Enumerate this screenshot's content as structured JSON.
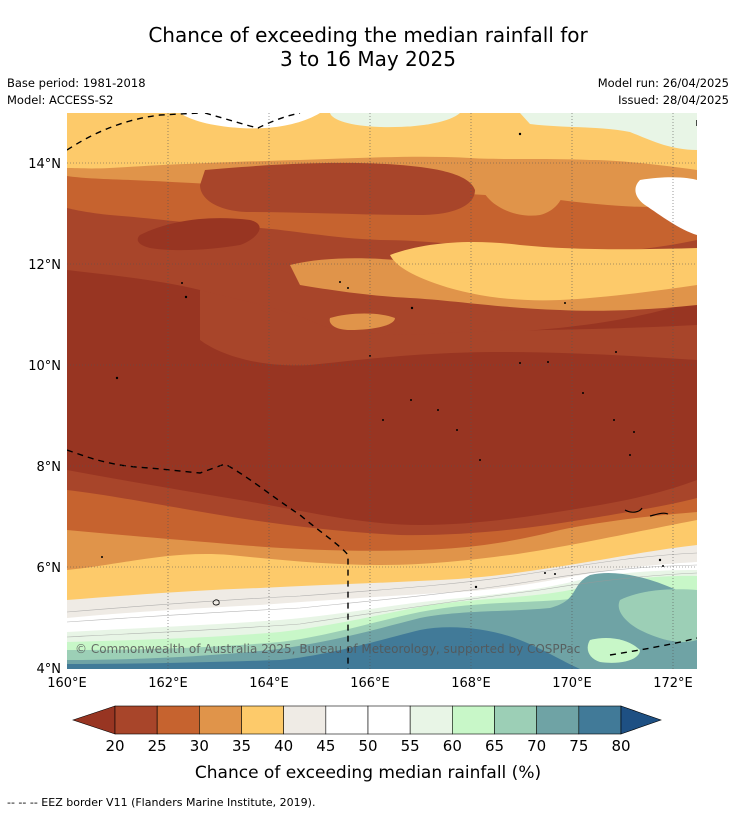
{
  "title_line1": "Chance of exceeding the median rainfall for",
  "title_line2": "3 to 16 May 2025",
  "base_period": "Base period: 1981-2018",
  "model": "Model: ACCESS-S2",
  "model_run": "Model run: 26/04/2025",
  "issued": "Issued: 28/04/2025",
  "copyright": "© Commonwealth of Australia 2025, Bureau of Meteorology, supported by COSPPac",
  "x_ticks": [
    "160°E",
    "162°E",
    "164°E",
    "166°E",
    "168°E",
    "170°E",
    "172°E"
  ],
  "y_ticks": [
    "14°N",
    "12°N",
    "10°N",
    "8°N",
    "6°N",
    "4°N"
  ],
  "colorbar": {
    "title": "Chance of exceeding median rainfall (%)",
    "ticks": [
      "20",
      "25",
      "30",
      "35",
      "40",
      "45",
      "50",
      "55",
      "60",
      "65",
      "70",
      "75",
      "80"
    ],
    "colors": [
      "#a8452a",
      "#c6632f",
      "#e0944a",
      "#fdca6a",
      "#efebe5",
      "#ffffff",
      "#ffffff",
      "#e8f5e6",
      "#c8f7c8",
      "#9ccfb6",
      "#6fa3a5",
      "#417a98"
    ],
    "under_color": "#983522",
    "over_color": "#1e5083"
  },
  "legend_note": "-- -- -- EEZ border V11 (Flanders Marine Institute, 2019)."
}
